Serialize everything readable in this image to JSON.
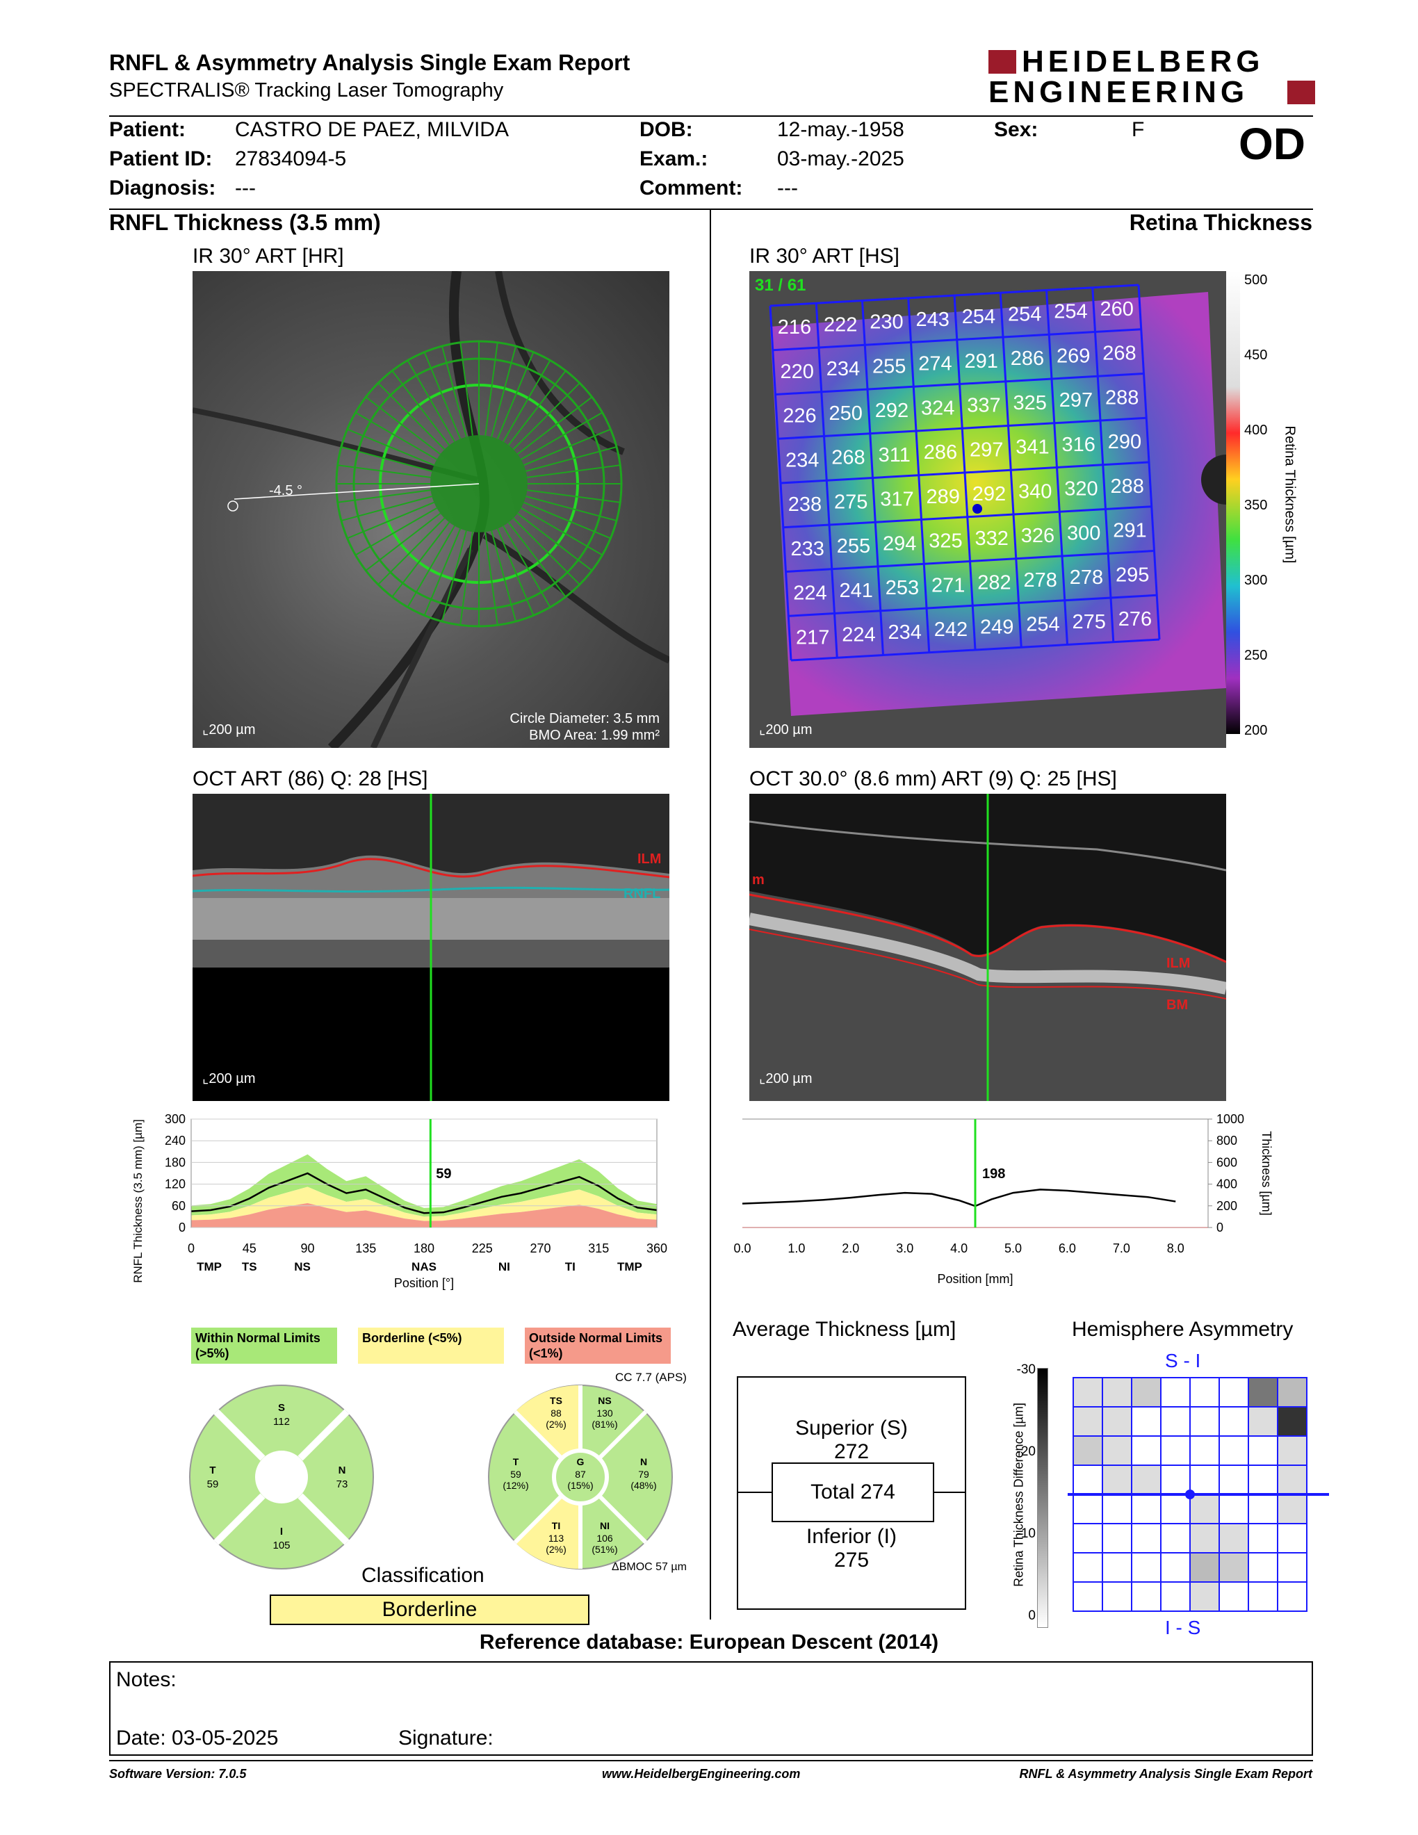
{
  "header": {
    "title": "RNFL & Asymmetry Analysis Single Exam Report",
    "subtitle": "SPECTRALIS® Tracking Laser Tomography",
    "logo_line1": "HEIDELBERG",
    "logo_line2": "ENGINEERING",
    "eye": "OD"
  },
  "patient": {
    "patient_label": "Patient:",
    "patient_value": "CASTRO DE PAEZ, MILVIDA",
    "id_label": "Patient ID:",
    "id_value": "27834094-5",
    "diag_label": "Diagnosis:",
    "diag_value": "---",
    "dob_label": "DOB:",
    "dob_value": "12-may.-1958",
    "exam_label": "Exam.:",
    "exam_value": "03-may.-2025",
    "comment_label": "Comment:",
    "comment_value": "---",
    "sex_label": "Sex:",
    "sex_value": "F"
  },
  "left": {
    "section_title": "RNFL Thickness (3.5 mm)",
    "ir_title": "IR 30° ART [HR]",
    "ir_angle": "-4.5 °",
    "ir_scale": "200 µm",
    "ir_circle": "Circle Diameter: 3.5 mm",
    "ir_bmo": "BMO Area: 1.99 mm²",
    "oct_title": "OCT ART (86) Q: 28 [HS]",
    "oct_scale": "200 µm",
    "oct_ilm": "ILM",
    "oct_rnfl": "RNFL"
  },
  "right": {
    "section_title": "Retina Thickness",
    "ir_title": "IR 30° ART [HS]",
    "ir_frame": "31 / 61",
    "ir_scale": "200 µm",
    "colorbar_label": "Retina Thickness [µm]",
    "colorbar_ticks": [
      "500",
      "450",
      "400",
      "350",
      "300",
      "250",
      "200"
    ],
    "grid": [
      [
        216,
        222,
        230,
        243,
        254,
        254,
        254,
        260
      ],
      [
        220,
        234,
        255,
        274,
        291,
        286,
        269,
        268
      ],
      [
        226,
        250,
        292,
        324,
        337,
        325,
        297,
        288
      ],
      [
        234,
        268,
        311,
        286,
        297,
        341,
        316,
        290
      ],
      [
        238,
        275,
        317,
        289,
        292,
        340,
        320,
        288
      ],
      [
        233,
        255,
        294,
        325,
        332,
        326,
        300,
        291
      ],
      [
        224,
        241,
        253,
        271,
        282,
        278,
        278,
        295
      ],
      [
        217,
        224,
        234,
        242,
        249,
        254,
        275,
        276
      ]
    ],
    "oct_title": "OCT 30.0° (8.6 mm) ART (9) Q: 25 [HS]",
    "oct_scale": "200 µm",
    "oct_ilm": "ILM",
    "oct_bm": "BM",
    "oct_m": "m"
  },
  "chart_data": [
    {
      "type": "line",
      "title": "",
      "ylabel": "RNFL Thickness (3.5 mm) [µm]",
      "xlabel": "Position [°]",
      "ylim": [
        0,
        300
      ],
      "xlim": [
        0,
        360
      ],
      "x_ticks": [
        "0",
        "45",
        "90",
        "135",
        "180",
        "225",
        "270",
        "315",
        "360"
      ],
      "y_ticks": [
        "0",
        "60",
        "120",
        "180",
        "240",
        "300"
      ],
      "sector_labels": [
        "TMP",
        "TS",
        "NS",
        "NAS",
        "NI",
        "TI",
        "TMP"
      ],
      "marker_value": "59",
      "x": [
        0,
        15,
        30,
        45,
        60,
        75,
        90,
        105,
        120,
        135,
        150,
        165,
        180,
        195,
        210,
        225,
        240,
        255,
        270,
        285,
        300,
        315,
        330,
        345,
        360
      ],
      "series": [
        {
          "name": "",
          "values": [
            45,
            48,
            58,
            80,
            110,
            130,
            150,
            120,
            95,
            105,
            80,
            55,
            40,
            42,
            55,
            70,
            85,
            95,
            110,
            125,
            140,
            115,
            80,
            55,
            48
          ]
        }
      ]
    },
    {
      "type": "line",
      "title": "",
      "ylabel": "Thickness [µm]",
      "xlabel": "Position [mm]",
      "ylim": [
        0,
        1000
      ],
      "xlim": [
        0,
        8.6
      ],
      "x_ticks": [
        "0.0",
        "1.0",
        "2.0",
        "3.0",
        "4.0",
        "5.0",
        "6.0",
        "7.0",
        "8.0"
      ],
      "y_ticks": [
        "0",
        "200",
        "400",
        "600",
        "800",
        "1000"
      ],
      "marker_value": "198",
      "x": [
        0,
        0.5,
        1,
        1.5,
        2,
        2.5,
        3,
        3.5,
        4,
        4.3,
        4.6,
        5,
        5.5,
        6,
        6.5,
        7,
        7.5,
        8
      ],
      "series": [
        {
          "name": "",
          "values": [
            220,
            230,
            240,
            255,
            275,
            300,
            320,
            310,
            250,
            198,
            260,
            320,
            350,
            340,
            320,
            300,
            280,
            240
          ]
        }
      ]
    }
  ],
  "legend": {
    "within": "Within Normal Limits (>5%)",
    "borderline": "Borderline (<5%)",
    "outside": "Outside Normal Limits (<1%)"
  },
  "sectors_simple": {
    "S": "112",
    "N": "73",
    "I": "105",
    "T": "59"
  },
  "sectors_detail": {
    "cc": "CC 7.7 (APS)",
    "TS": {
      "label": "TS",
      "value": "88",
      "pct": "(2%)"
    },
    "NS": {
      "label": "NS",
      "value": "130",
      "pct": "(81%)"
    },
    "T": {
      "label": "T",
      "value": "59",
      "pct": "(12%)"
    },
    "G": {
      "label": "G",
      "value": "87",
      "pct": "(15%)"
    },
    "N": {
      "label": "N",
      "value": "79",
      "pct": "(48%)"
    },
    "TI": {
      "label": "TI",
      "value": "113",
      "pct": "(2%)"
    },
    "NI": {
      "label": "NI",
      "value": "106",
      "pct": "(51%)"
    },
    "bmoc": "BMOC 57 µm"
  },
  "classification": {
    "title": "Classification",
    "value": "Borderline"
  },
  "avg": {
    "title": "Average Thickness [µm]",
    "superior": "Superior (S)",
    "superior_val": "272",
    "total": "Total 274",
    "inferior": "Inferior (I)",
    "inferior_val": "275"
  },
  "asym": {
    "title": "Hemisphere Asymmetry",
    "top": "S - I",
    "bottom": "I - S",
    "axis_label": "Retina Thickness Difference [µm]",
    "ticks": [
      "-30",
      "-20",
      "-10",
      "0"
    ]
  },
  "reference": "Reference database: European Descent (2014)",
  "notes": {
    "label": "Notes:",
    "date": "Date: 03-05-2025",
    "signature": "Signature:"
  },
  "footer": {
    "software": "Software Version: 7.0.5",
    "url": "www.HeidelbergEngineering.com",
    "report": "RNFL & Asymmetry Analysis Single Exam Report"
  },
  "colors": {
    "within": "#a8e878",
    "borderline": "#fff59a",
    "outside": "#f59a8a",
    "grid_blue": "#1a1aff"
  }
}
